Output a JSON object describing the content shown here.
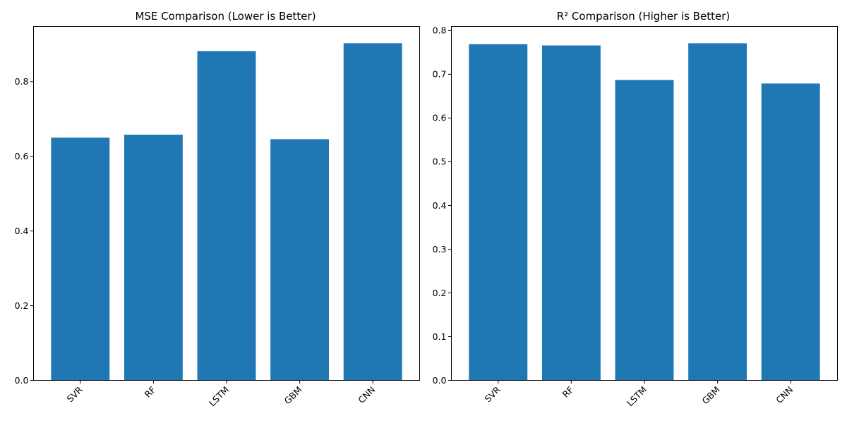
{
  "figure": {
    "background": "#ffffff"
  },
  "chart_data": [
    {
      "type": "bar",
      "title": "MSE Comparison (Lower is Better)",
      "xlabel": "",
      "ylabel": "",
      "categories": [
        "SVR",
        "RF",
        "LSTM",
        "GBM",
        "CNN"
      ],
      "values": [
        0.65,
        0.658,
        0.882,
        0.646,
        0.903
      ],
      "ylim": [
        0,
        0.948
      ],
      "yticks": [
        0.0,
        0.2,
        0.4,
        0.6,
        0.8
      ],
      "ytick_labels": [
        "0.0",
        "0.2",
        "0.4",
        "0.6",
        "0.8"
      ],
      "bar_color": "#1f77b4",
      "grid": false,
      "legend": "none"
    },
    {
      "type": "bar",
      "title": "R² Comparison (Higher is Better)",
      "xlabel": "",
      "ylabel": "",
      "categories": [
        "SVR",
        "RF",
        "LSTM",
        "GBM",
        "CNN"
      ],
      "values": [
        0.769,
        0.766,
        0.687,
        0.771,
        0.679
      ],
      "ylim": [
        0,
        0.8095
      ],
      "yticks": [
        0.0,
        0.1,
        0.2,
        0.3,
        0.4,
        0.5,
        0.6,
        0.7,
        0.8
      ],
      "ytick_labels": [
        "0.0",
        "0.1",
        "0.2",
        "0.3",
        "0.4",
        "0.5",
        "0.6",
        "0.7",
        "0.8"
      ],
      "bar_color": "#1f77b4",
      "grid": false,
      "legend": "none"
    }
  ]
}
